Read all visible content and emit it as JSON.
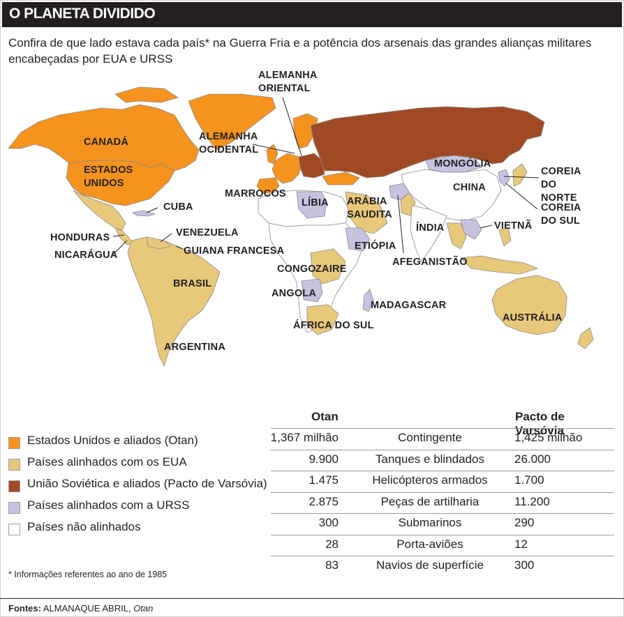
{
  "title": "O PLANETA DIVIDIDO",
  "subtitle": "Confira de que lado estava cada país* na Guerra Fria e a potência dos arsenais das grandes alianças militares encabeçadas por EUA e URSS",
  "colors": {
    "otan": "#f5931e",
    "eua_aligned": "#e8c87a",
    "pacto": "#a04a25",
    "urss_aligned": "#c6c2e0",
    "non_aligned": "#ffffff",
    "title_bg": "#231f20"
  },
  "map": {
    "labels": {
      "canada": "CANADÁ",
      "eua": "ESTADOS UNIDOS",
      "cuba": "CUBA",
      "honduras": "HONDURAS",
      "nicaragua": "NICARÁGUA",
      "venezuela": "VENEZUELA",
      "guiana": "GUIANA FRANCESA",
      "brasil": "BRASIL",
      "argentina": "ARGENTINA",
      "alemanha_oriental": "ALEMANHA ORIENTAL",
      "alemanha_ocidental": "ALEMANHA OCIDENTAL",
      "marrocos": "MARROCOS",
      "libia": "LÍBIA",
      "arabia": "ARÁBIA SAUDITA",
      "etiopia": "ETIÓPIA",
      "congo": "CONGO",
      "zaire": "ZAIRE",
      "angola": "ANGOLA",
      "africa_sul": "ÁFRICA DO SUL",
      "madagascar": "MADAGASCAR",
      "afeganistao": "AFEGANISTÃO",
      "india": "ÍNDIA",
      "mongolia": "MONGÓLIA",
      "china": "CHINA",
      "vietna": "VIETNÃ",
      "coreia_norte": "COREIA DO NORTE",
      "coreia_sul": "COREIA DO SUL",
      "australia": "AUSTRÁLIA"
    }
  },
  "legend": [
    {
      "label": "Estados Unidos e aliados (Otan)",
      "color": "#f5931e"
    },
    {
      "label": "Países alinhados com os EUA",
      "color": "#e8c87a"
    },
    {
      "label": "União Soviética e aliados (Pacto de Varsóvia)",
      "color": "#a04a25"
    },
    {
      "label": "Países alinhados com a URSS",
      "color": "#c6c2e0"
    },
    {
      "label": "Países não alinhados",
      "color": "#ffffff"
    }
  ],
  "footnote": "* Informações referentes ao ano de 1985",
  "table": {
    "col_otan": "Otan",
    "col_pacto": "Pacto de Varsóvia",
    "rows": [
      {
        "otan": "1,367 milhão",
        "item": "Contingente",
        "pacto": "1,425 milhão"
      },
      {
        "otan": "9.900",
        "item": "Tanques e blindados",
        "pacto": "26.000"
      },
      {
        "otan": "1.475",
        "item": "Helicópteros armados",
        "pacto": "1.700"
      },
      {
        "otan": "2.875",
        "item": "Peças de artilharia",
        "pacto": "11.200"
      },
      {
        "otan": "300",
        "item": "Submarinos",
        "pacto": "290"
      },
      {
        "otan": "28",
        "item": "Porta-aviões",
        "pacto": "12"
      },
      {
        "otan": "83",
        "item": "Navios de superfície",
        "pacto": "300"
      }
    ]
  },
  "sources": {
    "prefix": "Fontes:",
    "main": "ALMANAQUE ABRIL,",
    "italic": "Otan"
  }
}
